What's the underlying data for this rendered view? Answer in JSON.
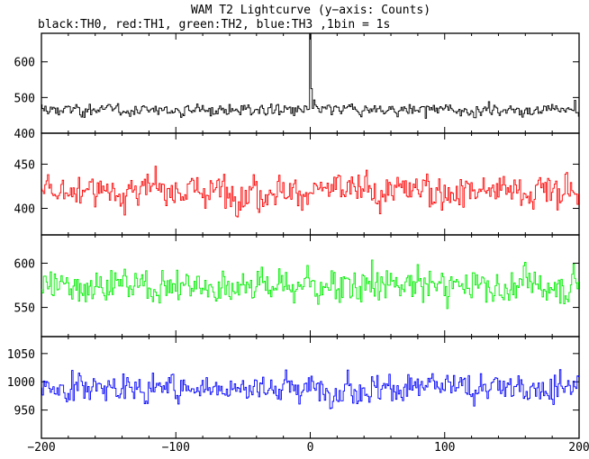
{
  "chart_data": {
    "type": "line",
    "title": "WAM T2 Lightcurve (y−axis: Counts)",
    "subtitle": "black:TH0, red:TH1, green:TH2, blue:TH3 ,1bin = 1s",
    "xlabel": "",
    "xlim": [
      -200,
      200
    ],
    "x_ticks": [
      -200,
      -100,
      0,
      100,
      200
    ],
    "x_tick_labels": [
      "−200",
      "−100",
      "0",
      "100",
      "200"
    ],
    "series": [
      {
        "color": "#000000",
        "ylim": [
          400,
          680
        ],
        "y_ticks": [
          400,
          500,
          600
        ],
        "mean": 465,
        "noise": 16,
        "burst": {
          "x": 0,
          "peak": 680
        },
        "ticks_labels": [
          "400",
          "500",
          "600"
        ]
      },
      {
        "color": "#ff0000",
        "ylim": [
          370,
          485
        ],
        "y_ticks": [
          400,
          450
        ],
        "mean": 420,
        "noise": 18,
        "ticks_labels": [
          "400",
          "450"
        ]
      },
      {
        "color": "#00ee00",
        "ylim": [
          517,
          632
        ],
        "y_ticks": [
          550,
          600
        ],
        "mean": 575,
        "noise": 18,
        "ticks_labels": [
          "550",
          "600"
        ]
      },
      {
        "color": "#0000ff",
        "ylim": [
          900,
          1080
        ],
        "y_ticks": [
          950,
          1000,
          1050
        ],
        "mean": 990,
        "noise": 24,
        "ticks_labels": [
          "950",
          "1000",
          "1050"
        ]
      }
    ]
  }
}
